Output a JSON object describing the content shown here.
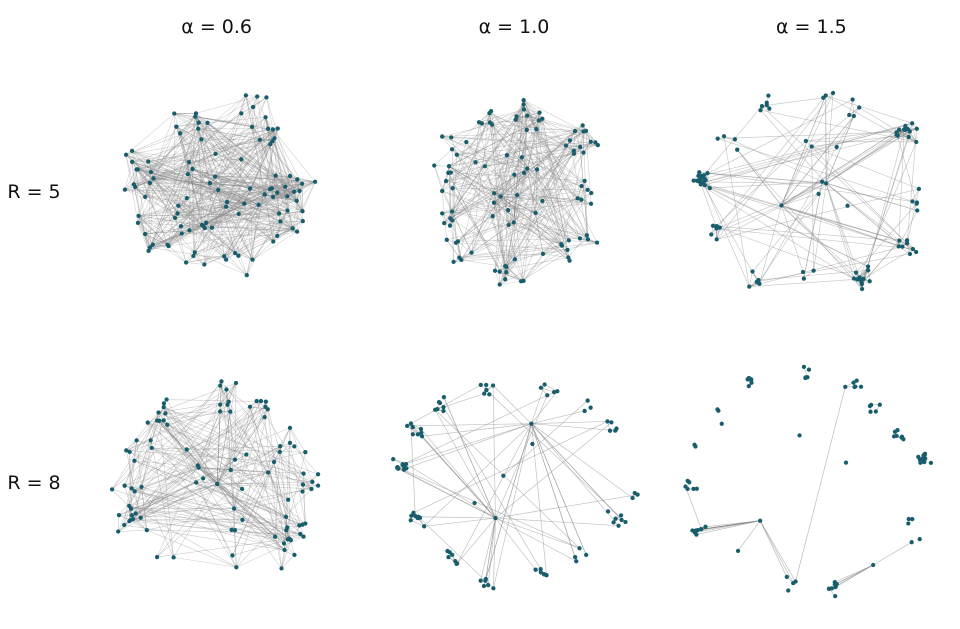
{
  "figure": {
    "type": "network-grid",
    "background": "#ffffff",
    "column_headers": [
      "α = 0.6",
      "α = 1.0",
      "α = 1.5"
    ],
    "row_headers": [
      "R = 5",
      "R = 8"
    ],
    "style": {
      "node_color": "#175d6b",
      "edge_color": "#888888",
      "label_color": "#111111"
    }
  },
  "chart_data": {
    "type": "network-grid",
    "description": "Six spring-layout network graphs arranged in a 2x3 grid. Columns vary α (0.6, 1.0, 1.5), rows vary R (5, 8). Edge density decreases as α and R increase: from a very dense hairball (R=5, α=0.6) to a sparse ring of mostly isolated nodes with a few local star clusters (R=8, α=1.5).",
    "columns": [
      {
        "param": "α",
        "value": 0.6,
        "label": "α = 0.6"
      },
      {
        "param": "α",
        "value": 1.0,
        "label": "α = 1.0"
      },
      {
        "param": "α",
        "value": 1.5,
        "label": "α = 1.5"
      }
    ],
    "rows": [
      {
        "param": "R",
        "value": 5,
        "label": "R = 5"
      },
      {
        "param": "R",
        "value": 8,
        "label": "R = 8"
      }
    ],
    "panels": [
      {
        "id": "r5-a06",
        "row_label": "R = 5",
        "col_label": "α = 0.6",
        "R": 5,
        "alpha": 0.6,
        "node_count": 100,
        "approx_edge_count": 680,
        "structure": "very dense hairball; heavily interconnected core with peripheral spikes",
        "gen": {
          "seed": 11,
          "radius": 112,
          "clusters": 10,
          "ringFrac": 0.62,
          "spread": 26,
          "innerFrac": 0.22,
          "localProb": 0.6,
          "longEdges": 420,
          "edgeOpacity": 0.38,
          "edgeWidth": 0.6,
          "hubs": [
            [
              0.5,
              0.5,
              26
            ],
            [
              0.42,
              0.42,
              20
            ],
            [
              0.6,
              0.55,
              18
            ],
            [
              0.45,
              0.62,
              16
            ]
          ],
          "hubLocal": false
        }
      },
      {
        "id": "r5-a10",
        "row_label": "R = 5",
        "col_label": "α = 1.0",
        "R": 5,
        "alpha": 1.0,
        "node_count": 98,
        "approx_edge_count": 520,
        "structure": "dense hairball with dominant central hub and clustered rim",
        "gen": {
          "seed": 22,
          "radius": 112,
          "clusters": 11,
          "ringFrac": 0.7,
          "spread": 20,
          "innerFrac": 0.15,
          "localProb": 0.55,
          "longEdges": 260,
          "edgeOpacity": 0.4,
          "edgeWidth": 0.6,
          "hubs": [
            [
              0.46,
              0.52,
              30
            ],
            [
              0.55,
              0.42,
              22
            ],
            [
              0.5,
              0.6,
              16
            ]
          ],
          "hubLocal": false
        }
      },
      {
        "id": "r5-a15",
        "row_label": "R = 5",
        "col_label": "α = 1.5",
        "R": 5,
        "alpha": 1.5,
        "node_count": 92,
        "approx_edge_count": 240,
        "structure": "ring of clusters with two interior hubs fanning spokes across an emptier middle",
        "gen": {
          "seed": 33,
          "radius": 112,
          "clusters": 12,
          "ringFrac": 0.88,
          "spread": 13,
          "innerFrac": 0.06,
          "localProb": 0.5,
          "longEdges": 70,
          "edgeOpacity": 0.5,
          "edgeWidth": 0.6,
          "hubs": [
            [
              0.55,
              0.47,
              26
            ],
            [
              0.4,
              0.55,
              22
            ]
          ],
          "hubLocal": false
        }
      },
      {
        "id": "r8-a06",
        "row_label": "R = 8",
        "col_label": "α = 0.6",
        "R": 8,
        "alpha": 0.6,
        "node_count": 96,
        "approx_edge_count": 330,
        "structure": "starburst: central hub with long straight spokes crossing the whole layout",
        "gen": {
          "seed": 44,
          "radius": 116,
          "clusters": 12,
          "ringFrac": 0.72,
          "spread": 20,
          "innerFrac": 0.12,
          "localProb": 0.18,
          "longEdges": 210,
          "edgeOpacity": 0.42,
          "edgeWidth": 0.6,
          "hubs": [
            [
              0.5,
              0.5,
              34
            ],
            [
              0.44,
              0.44,
              20
            ],
            [
              0.56,
              0.58,
              16
            ]
          ],
          "hubLocal": false
        }
      },
      {
        "id": "r8-a10",
        "row_label": "R = 8",
        "col_label": "α = 1.0",
        "R": 8,
        "alpha": 1.0,
        "node_count": 88,
        "approx_edge_count": 115,
        "structure": "sparse ring with two interior hubs; right side mostly disconnected short chains",
        "gen": {
          "seed": 55,
          "radius": 116,
          "clusters": 14,
          "ringFrac": 0.9,
          "spread": 11,
          "innerFrac": 0.03,
          "localProb": 0.25,
          "longEdges": 12,
          "edgeOpacity": 0.55,
          "edgeWidth": 0.65,
          "hubs": [
            [
              0.56,
              0.3,
              24
            ],
            [
              0.44,
              0.62,
              26
            ]
          ],
          "hubLocal": false
        }
      },
      {
        "id": "r8-a15",
        "row_label": "R = 8",
        "col_label": "α = 1.5",
        "R": 8,
        "alpha": 1.5,
        "node_count": 82,
        "approx_edge_count": 55,
        "structure": "ring of mostly isolated nodes; a few local star clusters (lower-left fan, right cluster, bottom-right star)",
        "gen": {
          "seed": 66,
          "radius": 116,
          "clusters": 16,
          "ringFrac": 0.92,
          "spread": 9,
          "innerFrac": 0.02,
          "localProb": 0.12,
          "longEdges": 3,
          "edgeOpacity": 0.6,
          "edgeWidth": 0.65,
          "hubs": [
            [
              0.33,
              0.63,
              13
            ],
            [
              0.87,
              0.4,
              9
            ],
            [
              0.7,
              0.78,
              6
            ],
            [
              0.3,
              0.15,
              4
            ]
          ],
          "hubLocal": true
        }
      }
    ]
  }
}
